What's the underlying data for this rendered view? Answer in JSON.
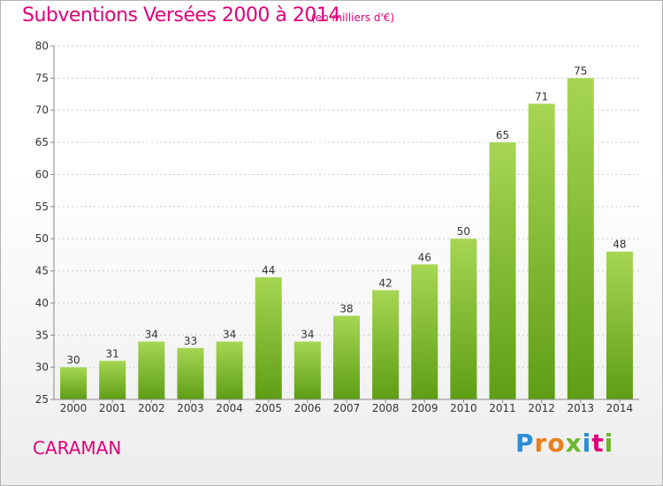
{
  "title": "Subventions Versées 2000 à 2014",
  "subtitle": "(en milliers d'€)",
  "commune": "CARAMAN",
  "brand": {
    "letters": [
      "P",
      "r",
      "o",
      "x",
      "i",
      "t",
      "i"
    ],
    "colors": [
      "#2a8fd6",
      "#e87f1d",
      "#e87f1d",
      "#6cb52d",
      "#2a8fd6",
      "#e0007a",
      "#6cb52d"
    ]
  },
  "colors": {
    "title": "#e0007a",
    "bar_light": "#a6d653",
    "bar_dark": "#5e9e14",
    "grid": "#cccccc",
    "axis": "#888888"
  },
  "chart_data": {
    "type": "bar",
    "title": "Subventions Versées 2000 à 2014",
    "subtitle": "(en milliers d'€)",
    "xlabel": "",
    "ylabel": "",
    "categories": [
      "2000",
      "2001",
      "2002",
      "2003",
      "2004",
      "2005",
      "2006",
      "2007",
      "2008",
      "2009",
      "2010",
      "2011",
      "2012",
      "2013",
      "2014"
    ],
    "values": [
      30,
      31,
      34,
      33,
      34,
      44,
      34,
      38,
      42,
      46,
      50,
      65,
      71,
      75,
      48
    ],
    "ylim": [
      25,
      80
    ],
    "yticks": [
      25,
      30,
      35,
      40,
      45,
      50,
      55,
      60,
      65,
      70,
      75,
      80
    ],
    "grid": true
  }
}
